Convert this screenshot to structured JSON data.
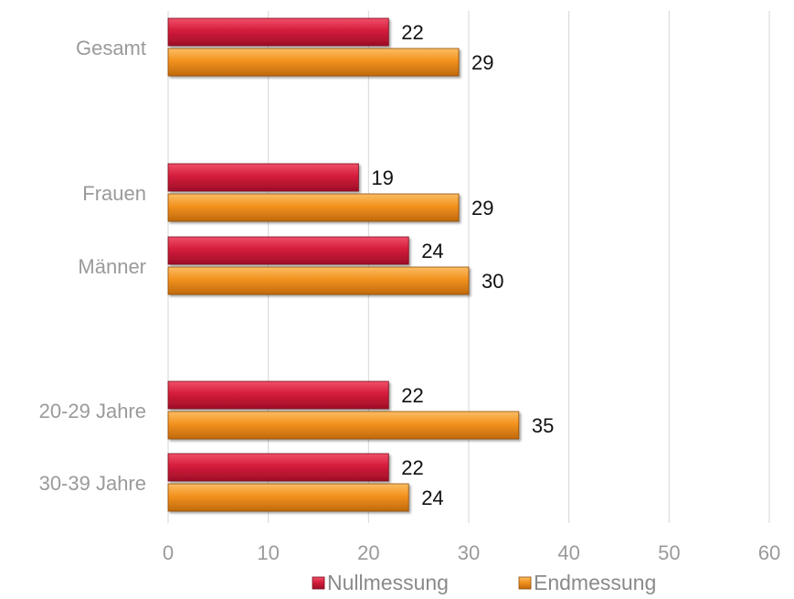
{
  "chart_data": {
    "type": "bar",
    "orientation": "horizontal",
    "categories": [
      "Gesamt",
      "Frauen",
      "Männer",
      "20-29 Jahre",
      "30-39 Jahre"
    ],
    "series": [
      {
        "name": "Nullmessung",
        "values": [
          22,
          19,
          24,
          22,
          22
        ],
        "labels": [
          "22",
          "19",
          "24",
          "22",
          "22"
        ],
        "color": "#d41c3c"
      },
      {
        "name": "Endmessung",
        "values": [
          29,
          29,
          30,
          35,
          24
        ],
        "labels": [
          "29",
          "29",
          "30",
          "35",
          "24"
        ],
        "color": "#f2921e"
      }
    ],
    "xlim": [
      0,
      60
    ],
    "xticks": [
      "0",
      "10",
      "20",
      "30",
      "40",
      "50",
      "60"
    ],
    "grid": true,
    "legend_position": "bottom"
  }
}
